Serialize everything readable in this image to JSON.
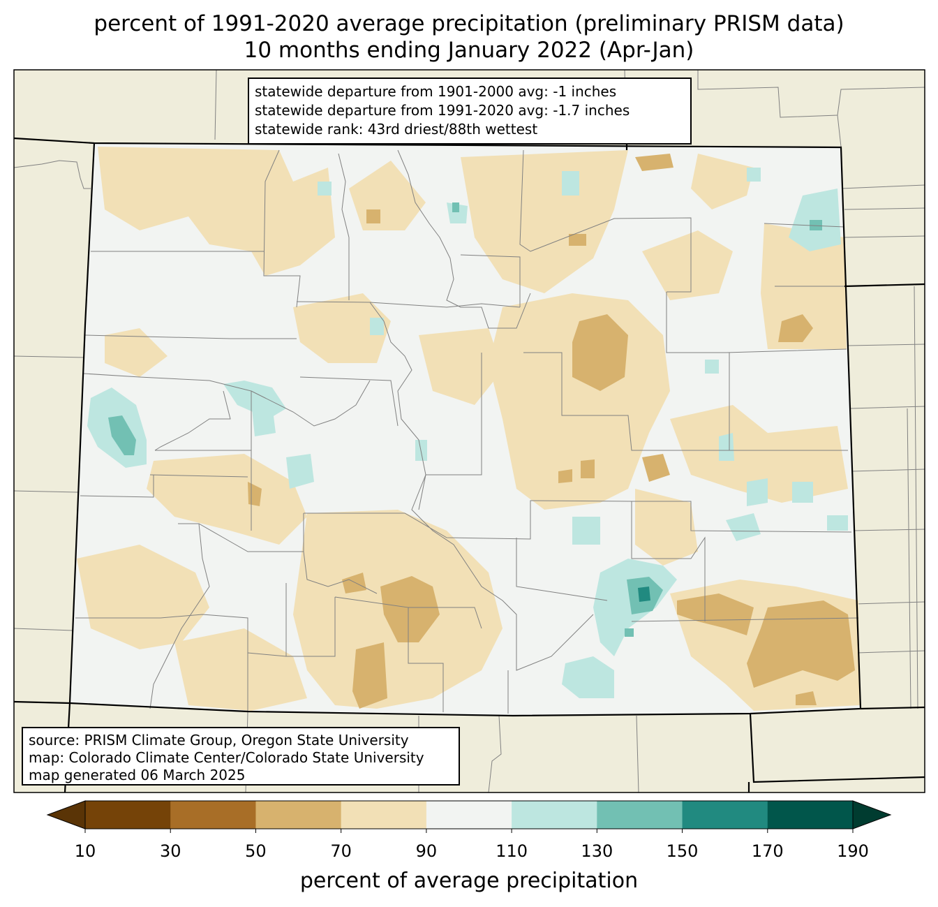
{
  "title_line1": "percent of 1991-2020 average precipitation (preliminary PRISM data)",
  "title_line2": "10 months ending January 2022 (Apr-Jan)",
  "stats": [
    "statewide departure from 1901-2000 avg: -1 inches",
    "statewide departure from 1991-2020 avg: -1.7 inches",
    "statewide rank: 43rd driest/88th wettest"
  ],
  "source": [
    "source: PRISM Climate Group, Oregon State University",
    "map: Colorado Climate Center/Colorado State University",
    "map generated 06 March 2025"
  ],
  "colorbar": {
    "label": "percent of average precipitation",
    "ticks": [
      "10",
      "30",
      "50",
      "70",
      "90",
      "110",
      "130",
      "150",
      "170",
      "190"
    ],
    "colors": [
      "#754308",
      "#a86e27",
      "#d7b26e",
      "#f2e0b6",
      "#f2f4f2",
      "#bde6e0",
      "#72c0b3",
      "#218a80",
      "#01564b"
    ],
    "under_color": "#5a3406",
    "over_color": "#003c30"
  },
  "colors": {
    "land_background": "#efeddb",
    "state_default": "#f2f4f2",
    "county_lines": "#808080",
    "state_lines": "#000000"
  }
}
